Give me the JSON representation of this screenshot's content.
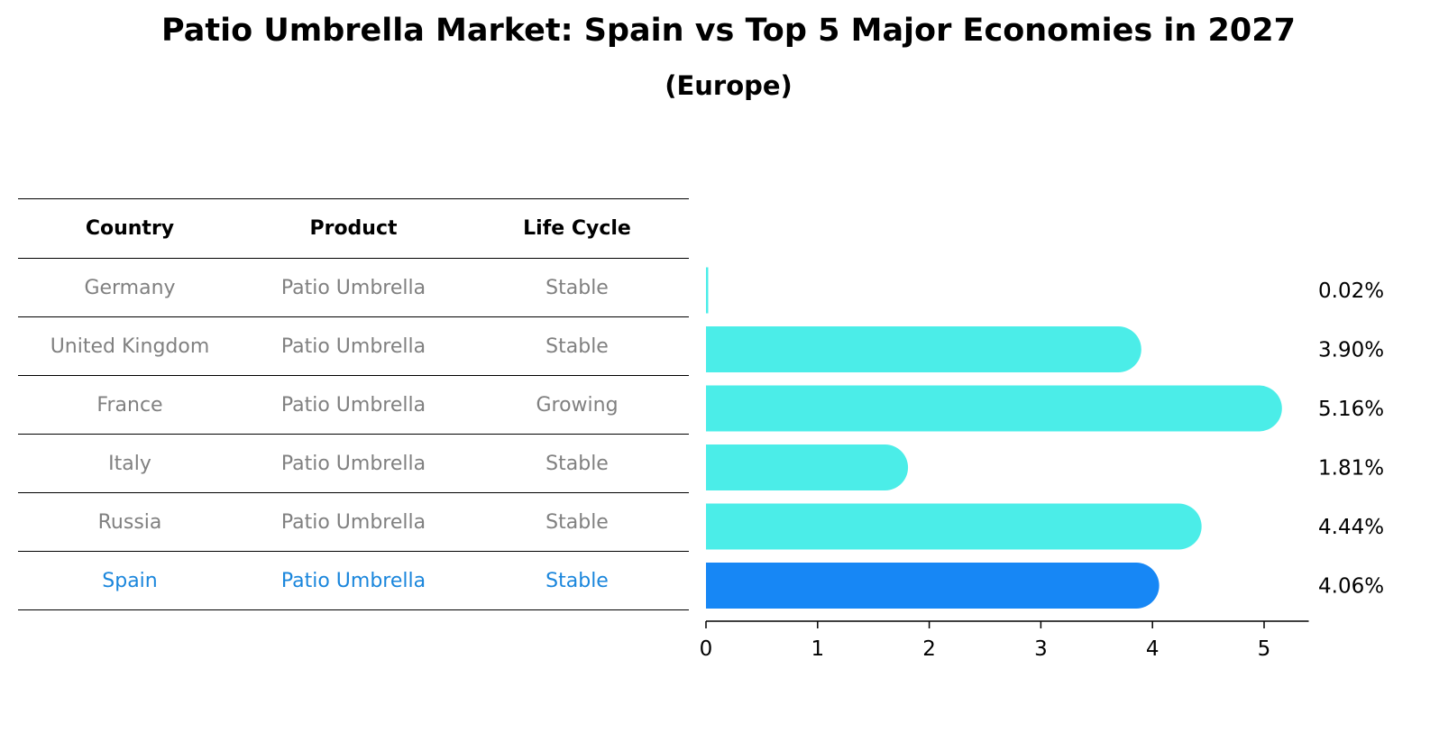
{
  "title": "Patio Umbrella Market: Spain vs Top 5 Major Economies in 2027",
  "subtitle": "(Europe)",
  "table": {
    "headers": [
      "Country",
      "Product",
      "Life Cycle"
    ],
    "rows": [
      {
        "country": "Germany",
        "product": "Patio Umbrella",
        "life_cycle": "Stable"
      },
      {
        "country": "United Kingdom",
        "product": "Patio Umbrella",
        "life_cycle": "Stable"
      },
      {
        "country": "France",
        "product": "Patio Umbrella",
        "life_cycle": "Growing"
      },
      {
        "country": "Italy",
        "product": "Patio Umbrella",
        "life_cycle": "Stable"
      },
      {
        "country": "Russia",
        "product": "Patio Umbrella",
        "life_cycle": "Stable"
      },
      {
        "country": "Spain",
        "product": "Patio Umbrella",
        "life_cycle": "Stable"
      }
    ]
  },
  "colors": {
    "bar": "#4bede8",
    "highlight_bar": "#1787f5",
    "highlight_text": "#1a86dc",
    "row_text": "#808080"
  },
  "chart_data": {
    "type": "bar",
    "orientation": "horizontal",
    "categories": [
      "Germany",
      "United Kingdom",
      "France",
      "Italy",
      "Russia",
      "Spain"
    ],
    "values": [
      0.02,
      3.9,
      5.16,
      1.81,
      4.44,
      4.06
    ],
    "value_labels": [
      "0.02%",
      "3.90%",
      "5.16%",
      "1.81%",
      "4.44%",
      "4.06%"
    ],
    "highlight": "Spain",
    "xlim": [
      0,
      5.4
    ],
    "xticks": [
      0,
      1,
      2,
      3,
      4,
      5
    ],
    "title": "",
    "xlabel": "",
    "ylabel": "",
    "grid": false
  }
}
